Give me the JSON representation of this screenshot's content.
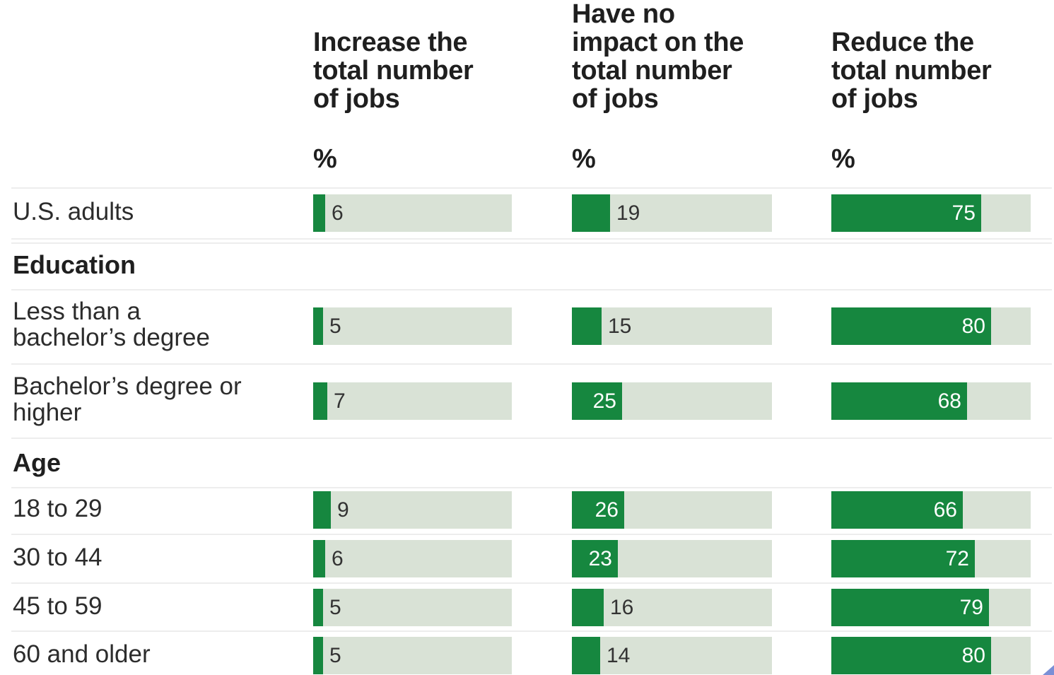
{
  "chart_data": {
    "type": "bar",
    "columns": [
      {
        "header": [
          "Increase the",
          "total number",
          "of jobs"
        ],
        "unit": "%",
        "x": 443,
        "width": 281
      },
      {
        "header": [
          "Have no",
          "impact on the",
          "total number",
          "of jobs"
        ],
        "unit": "%",
        "x": 809,
        "width": 283
      },
      {
        "header": [
          "Reduce the",
          "total number",
          "of jobs"
        ],
        "unit": "%",
        "x": 1176,
        "width": 282
      }
    ],
    "rows": [
      {
        "kind": "item",
        "label": [
          "U.S. adults"
        ],
        "values": [
          6,
          19,
          75
        ]
      },
      {
        "kind": "group",
        "label": [
          "Education"
        ]
      },
      {
        "kind": "item",
        "label": [
          "Less than a",
          "bachelor’s degree"
        ],
        "values": [
          5,
          15,
          80
        ]
      },
      {
        "kind": "item",
        "label": [
          "Bachelor’s degree or",
          "higher"
        ],
        "values": [
          7,
          25,
          68
        ]
      },
      {
        "kind": "group",
        "label": [
          "Age"
        ]
      },
      {
        "kind": "item",
        "label": [
          "18 to 29"
        ],
        "values": [
          9,
          26,
          66
        ]
      },
      {
        "kind": "item",
        "label": [
          "30 to 44"
        ],
        "values": [
          6,
          23,
          72
        ]
      },
      {
        "kind": "item",
        "label": [
          "45 to 59"
        ],
        "values": [
          5,
          16,
          79
        ]
      },
      {
        "kind": "item",
        "label": [
          "60 and older"
        ],
        "values": [
          5,
          14,
          80
        ]
      }
    ],
    "xlim": [
      0,
      100
    ],
    "colors": {
      "fill": "#16873f",
      "track": "#d9e2d6",
      "label_on_fill": "#ffffff",
      "label_on_track": "#333333"
    }
  }
}
